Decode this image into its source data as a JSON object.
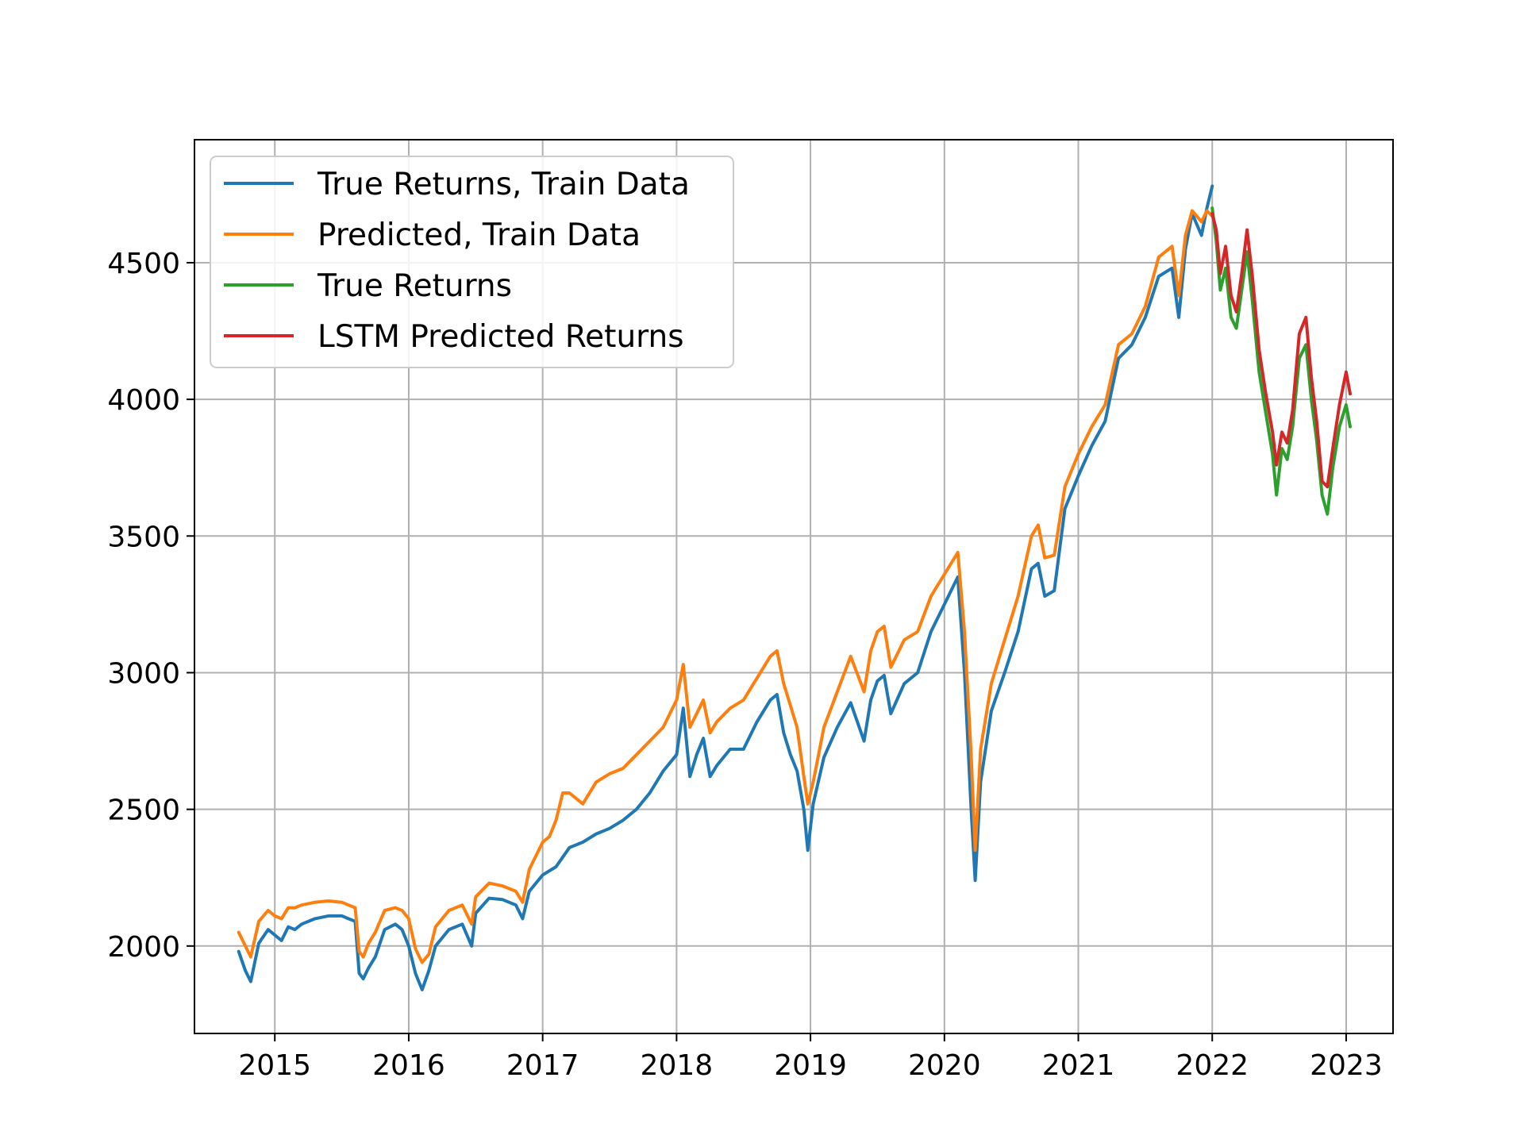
{
  "chart_data": {
    "type": "line",
    "title": "",
    "xlabel": "",
    "ylabel": "",
    "xlim": [
      2014.4,
      2023.35
    ],
    "ylim": [
      1680,
      4950
    ],
    "x_ticks": [
      2015,
      2016,
      2017,
      2018,
      2019,
      2020,
      2021,
      2022,
      2023
    ],
    "x_tick_labels": [
      "2015",
      "2016",
      "2017",
      "2018",
      "2019",
      "2020",
      "2021",
      "2022",
      "2023"
    ],
    "y_ticks": [
      2000,
      2500,
      3000,
      3500,
      4000,
      4500
    ],
    "y_tick_labels": [
      "2000",
      "2500",
      "3000",
      "3500",
      "4000",
      "4500"
    ],
    "grid": true,
    "legend_position": "top-left",
    "series": [
      {
        "name": "True Returns, Train Data",
        "color": "#1f77b4",
        "points": [
          [
            2014.73,
            1980
          ],
          [
            2014.78,
            1910
          ],
          [
            2014.82,
            1870
          ],
          [
            2014.88,
            2010
          ],
          [
            2014.95,
            2060
          ],
          [
            2015.0,
            2040
          ],
          [
            2015.05,
            2020
          ],
          [
            2015.1,
            2070
          ],
          [
            2015.15,
            2060
          ],
          [
            2015.2,
            2080
          ],
          [
            2015.3,
            2100
          ],
          [
            2015.4,
            2110
          ],
          [
            2015.5,
            2110
          ],
          [
            2015.55,
            2100
          ],
          [
            2015.6,
            2090
          ],
          [
            2015.63,
            1900
          ],
          [
            2015.66,
            1880
          ],
          [
            2015.7,
            1920
          ],
          [
            2015.75,
            1960
          ],
          [
            2015.82,
            2060
          ],
          [
            2015.9,
            2080
          ],
          [
            2015.95,
            2060
          ],
          [
            2016.0,
            2000
          ],
          [
            2016.05,
            1900
          ],
          [
            2016.1,
            1840
          ],
          [
            2016.15,
            1910
          ],
          [
            2016.2,
            2000
          ],
          [
            2016.3,
            2060
          ],
          [
            2016.4,
            2080
          ],
          [
            2016.47,
            2000
          ],
          [
            2016.5,
            2120
          ],
          [
            2016.6,
            2175
          ],
          [
            2016.7,
            2170
          ],
          [
            2016.8,
            2150
          ],
          [
            2016.85,
            2100
          ],
          [
            2016.9,
            2200
          ],
          [
            2017.0,
            2260
          ],
          [
            2017.1,
            2290
          ],
          [
            2017.2,
            2360
          ],
          [
            2017.3,
            2380
          ],
          [
            2017.4,
            2410
          ],
          [
            2017.5,
            2430
          ],
          [
            2017.6,
            2460
          ],
          [
            2017.7,
            2500
          ],
          [
            2017.8,
            2560
          ],
          [
            2017.9,
            2640
          ],
          [
            2018.0,
            2700
          ],
          [
            2018.05,
            2870
          ],
          [
            2018.1,
            2620
          ],
          [
            2018.15,
            2700
          ],
          [
            2018.2,
            2760
          ],
          [
            2018.25,
            2620
          ],
          [
            2018.3,
            2660
          ],
          [
            2018.4,
            2720
          ],
          [
            2018.5,
            2720
          ],
          [
            2018.6,
            2820
          ],
          [
            2018.7,
            2900
          ],
          [
            2018.75,
            2920
          ],
          [
            2018.8,
            2780
          ],
          [
            2018.85,
            2700
          ],
          [
            2018.9,
            2640
          ],
          [
            2018.95,
            2500
          ],
          [
            2018.98,
            2350
          ],
          [
            2019.02,
            2520
          ],
          [
            2019.1,
            2690
          ],
          [
            2019.2,
            2800
          ],
          [
            2019.3,
            2890
          ],
          [
            2019.4,
            2750
          ],
          [
            2019.45,
            2900
          ],
          [
            2019.5,
            2970
          ],
          [
            2019.55,
            2990
          ],
          [
            2019.6,
            2850
          ],
          [
            2019.7,
            2960
          ],
          [
            2019.8,
            3000
          ],
          [
            2019.9,
            3150
          ],
          [
            2020.0,
            3250
          ],
          [
            2020.1,
            3350
          ],
          [
            2020.15,
            3000
          ],
          [
            2020.2,
            2500
          ],
          [
            2020.23,
            2240
          ],
          [
            2020.27,
            2600
          ],
          [
            2020.35,
            2860
          ],
          [
            2020.45,
            3000
          ],
          [
            2020.55,
            3150
          ],
          [
            2020.65,
            3380
          ],
          [
            2020.7,
            3400
          ],
          [
            2020.75,
            3280
          ],
          [
            2020.82,
            3300
          ],
          [
            2020.9,
            3600
          ],
          [
            2021.0,
            3720
          ],
          [
            2021.1,
            3830
          ],
          [
            2021.2,
            3920
          ],
          [
            2021.3,
            4150
          ],
          [
            2021.4,
            4200
          ],
          [
            2021.5,
            4300
          ],
          [
            2021.6,
            4450
          ],
          [
            2021.7,
            4480
          ],
          [
            2021.75,
            4300
          ],
          [
            2021.8,
            4550
          ],
          [
            2021.85,
            4680
          ],
          [
            2021.92,
            4600
          ],
          [
            2021.96,
            4700
          ],
          [
            2022.0,
            4780
          ]
        ]
      },
      {
        "name": "Predicted, Train Data",
        "color": "#ff7f0e",
        "points": [
          [
            2014.73,
            2050
          ],
          [
            2014.78,
            2000
          ],
          [
            2014.82,
            1960
          ],
          [
            2014.88,
            2090
          ],
          [
            2014.95,
            2130
          ],
          [
            2015.0,
            2110
          ],
          [
            2015.05,
            2100
          ],
          [
            2015.1,
            2140
          ],
          [
            2015.15,
            2140
          ],
          [
            2015.2,
            2150
          ],
          [
            2015.3,
            2160
          ],
          [
            2015.4,
            2165
          ],
          [
            2015.5,
            2160
          ],
          [
            2015.55,
            2150
          ],
          [
            2015.6,
            2140
          ],
          [
            2015.63,
            1980
          ],
          [
            2015.66,
            1960
          ],
          [
            2015.7,
            2010
          ],
          [
            2015.75,
            2050
          ],
          [
            2015.82,
            2130
          ],
          [
            2015.9,
            2140
          ],
          [
            2015.95,
            2130
          ],
          [
            2016.0,
            2100
          ],
          [
            2016.05,
            1990
          ],
          [
            2016.1,
            1940
          ],
          [
            2016.15,
            1970
          ],
          [
            2016.2,
            2070
          ],
          [
            2016.3,
            2130
          ],
          [
            2016.4,
            2150
          ],
          [
            2016.47,
            2080
          ],
          [
            2016.5,
            2180
          ],
          [
            2016.6,
            2230
          ],
          [
            2016.7,
            2220
          ],
          [
            2016.8,
            2200
          ],
          [
            2016.85,
            2160
          ],
          [
            2016.9,
            2280
          ],
          [
            2017.0,
            2380
          ],
          [
            2017.05,
            2400
          ],
          [
            2017.1,
            2460
          ],
          [
            2017.15,
            2560
          ],
          [
            2017.2,
            2560
          ],
          [
            2017.3,
            2520
          ],
          [
            2017.4,
            2600
          ],
          [
            2017.5,
            2630
          ],
          [
            2017.6,
            2650
          ],
          [
            2017.7,
            2700
          ],
          [
            2017.8,
            2750
          ],
          [
            2017.9,
            2800
          ],
          [
            2018.0,
            2900
          ],
          [
            2018.05,
            3030
          ],
          [
            2018.1,
            2800
          ],
          [
            2018.15,
            2850
          ],
          [
            2018.2,
            2900
          ],
          [
            2018.25,
            2780
          ],
          [
            2018.3,
            2820
          ],
          [
            2018.4,
            2870
          ],
          [
            2018.5,
            2900
          ],
          [
            2018.6,
            2980
          ],
          [
            2018.7,
            3060
          ],
          [
            2018.75,
            3080
          ],
          [
            2018.8,
            2960
          ],
          [
            2018.85,
            2880
          ],
          [
            2018.9,
            2800
          ],
          [
            2018.95,
            2620
          ],
          [
            2018.98,
            2520
          ],
          [
            2019.02,
            2600
          ],
          [
            2019.1,
            2800
          ],
          [
            2019.2,
            2930
          ],
          [
            2019.3,
            3060
          ],
          [
            2019.4,
            2930
          ],
          [
            2019.45,
            3080
          ],
          [
            2019.5,
            3150
          ],
          [
            2019.55,
            3170
          ],
          [
            2019.6,
            3020
          ],
          [
            2019.7,
            3120
          ],
          [
            2019.8,
            3150
          ],
          [
            2019.9,
            3280
          ],
          [
            2020.0,
            3360
          ],
          [
            2020.1,
            3440
          ],
          [
            2020.15,
            3150
          ],
          [
            2020.2,
            2700
          ],
          [
            2020.23,
            2350
          ],
          [
            2020.27,
            2720
          ],
          [
            2020.35,
            2960
          ],
          [
            2020.45,
            3120
          ],
          [
            2020.55,
            3280
          ],
          [
            2020.65,
            3500
          ],
          [
            2020.7,
            3540
          ],
          [
            2020.75,
            3420
          ],
          [
            2020.82,
            3430
          ],
          [
            2020.9,
            3680
          ],
          [
            2021.0,
            3800
          ],
          [
            2021.1,
            3900
          ],
          [
            2021.2,
            3980
          ],
          [
            2021.3,
            4200
          ],
          [
            2021.4,
            4240
          ],
          [
            2021.5,
            4340
          ],
          [
            2021.6,
            4520
          ],
          [
            2021.7,
            4560
          ],
          [
            2021.75,
            4380
          ],
          [
            2021.8,
            4600
          ],
          [
            2021.85,
            4690
          ],
          [
            2021.92,
            4650
          ],
          [
            2021.96,
            4690
          ],
          [
            2022.0,
            4670
          ]
        ]
      },
      {
        "name": "True Returns",
        "color": "#2ca02c",
        "points": [
          [
            2022.0,
            4700
          ],
          [
            2022.03,
            4580
          ],
          [
            2022.06,
            4400
          ],
          [
            2022.1,
            4480
          ],
          [
            2022.14,
            4300
          ],
          [
            2022.18,
            4260
          ],
          [
            2022.22,
            4400
          ],
          [
            2022.26,
            4540
          ],
          [
            2022.3,
            4360
          ],
          [
            2022.35,
            4100
          ],
          [
            2022.4,
            3950
          ],
          [
            2022.45,
            3800
          ],
          [
            2022.48,
            3650
          ],
          [
            2022.52,
            3820
          ],
          [
            2022.56,
            3780
          ],
          [
            2022.6,
            3900
          ],
          [
            2022.65,
            4150
          ],
          [
            2022.7,
            4200
          ],
          [
            2022.74,
            4000
          ],
          [
            2022.78,
            3850
          ],
          [
            2022.82,
            3650
          ],
          [
            2022.86,
            3580
          ],
          [
            2022.9,
            3750
          ],
          [
            2022.95,
            3900
          ],
          [
            2023.0,
            3980
          ],
          [
            2023.03,
            3900
          ]
        ]
      },
      {
        "name": "LSTM Predicted Returns",
        "color": "#d62728",
        "points": [
          [
            2022.0,
            4680
          ],
          [
            2022.03,
            4620
          ],
          [
            2022.06,
            4460
          ],
          [
            2022.1,
            4560
          ],
          [
            2022.14,
            4380
          ],
          [
            2022.18,
            4320
          ],
          [
            2022.22,
            4460
          ],
          [
            2022.26,
            4620
          ],
          [
            2022.3,
            4450
          ],
          [
            2022.35,
            4180
          ],
          [
            2022.4,
            4020
          ],
          [
            2022.45,
            3880
          ],
          [
            2022.48,
            3760
          ],
          [
            2022.52,
            3880
          ],
          [
            2022.56,
            3840
          ],
          [
            2022.6,
            3960
          ],
          [
            2022.65,
            4240
          ],
          [
            2022.7,
            4300
          ],
          [
            2022.74,
            4080
          ],
          [
            2022.78,
            3920
          ],
          [
            2022.82,
            3700
          ],
          [
            2022.86,
            3680
          ],
          [
            2022.9,
            3820
          ],
          [
            2022.95,
            3980
          ],
          [
            2023.0,
            4100
          ],
          [
            2023.03,
            4020
          ]
        ]
      }
    ]
  }
}
